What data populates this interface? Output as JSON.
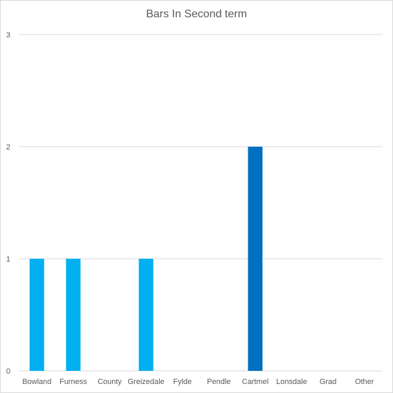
{
  "chart_data": {
    "type": "bar",
    "title": "Bars In Second term",
    "xlabel": "",
    "ylabel": "",
    "categories": [
      "Bowland",
      "Furness",
      "County",
      "Greizedale",
      "Fylde",
      "Pendle",
      "Cartmel",
      "Lonsdale",
      "Grad",
      "Other"
    ],
    "values": [
      1,
      1,
      0,
      1,
      0,
      0,
      2,
      0,
      0,
      0
    ],
    "yticks": [
      "0",
      "1",
      "2",
      "3"
    ],
    "ylim": [
      0,
      3
    ],
    "grid": true,
    "legend": "none",
    "colors": {
      "bar": "#00b0f0",
      "highlight_bar": "#0070c0",
      "highlight_index": 6,
      "gridline": "#d9d9d9",
      "text": "#595959"
    }
  }
}
